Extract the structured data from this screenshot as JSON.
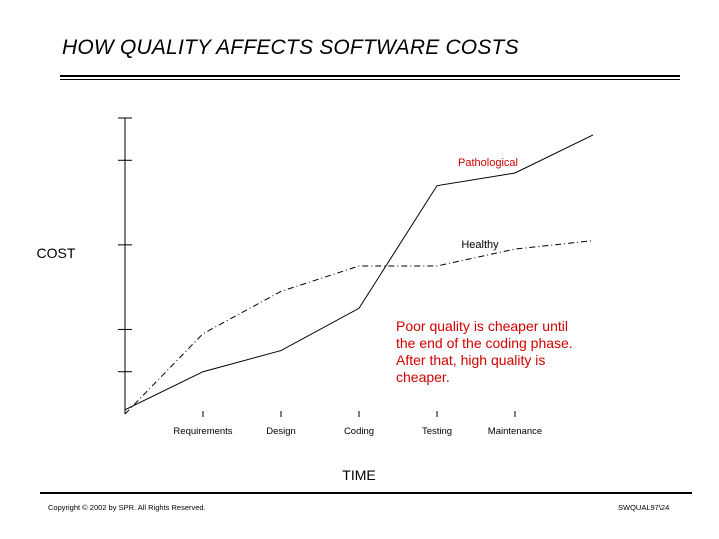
{
  "slide": {
    "title": "HOW QUALITY AFFECTS SOFTWARE COSTS",
    "copyright": "Copyright © 2002 by SPR.  All Rights Reserved.",
    "slide_code": "SWQUAL97\\24",
    "annotation_lines": [
      "Poor quality is cheaper until",
      "the end of the coding phase.",
      "After that, high quality is",
      "cheaper."
    ],
    "colors": {
      "annotation": "#d20000",
      "pathological_label": "#d20000",
      "lines": "#000000"
    }
  },
  "chart_data": {
    "type": "line",
    "xlabel": "TIME",
    "ylabel": "COST",
    "categories": [
      "",
      "Requirements",
      "Design",
      "Coding",
      "Testing",
      "Maintenance",
      ""
    ],
    "x": [
      0,
      1,
      2,
      3,
      4,
      5,
      6
    ],
    "xlim": [
      0,
      6
    ],
    "ylim": [
      0,
      7
    ],
    "y_ticks": [
      1,
      2,
      4,
      6,
      7
    ],
    "y_tick_labels": false,
    "grid": false,
    "series": [
      {
        "name": "Pathological",
        "style": "solid",
        "color": "#000000",
        "label_color": "#d20000",
        "values": [
          0.1,
          1.0,
          1.5,
          2.5,
          5.4,
          5.7,
          6.6
        ]
      },
      {
        "name": "Healthy",
        "style": "dash-dot",
        "color": "#000000",
        "label_color": "#000000",
        "values": [
          0.0,
          1.9,
          2.9,
          3.5,
          3.5,
          3.9,
          4.1
        ]
      }
    ]
  }
}
